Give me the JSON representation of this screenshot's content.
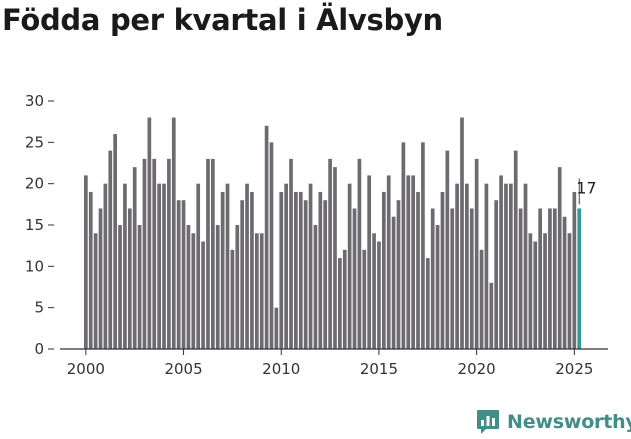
{
  "chart_data": {
    "type": "bar",
    "title": "Födda per kvartal i Älvsbyn",
    "xlabel": "",
    "ylabel": "",
    "ylim": [
      0,
      30
    ],
    "y_ticks": [
      "0",
      "5",
      "10",
      "15",
      "20",
      "25",
      "30"
    ],
    "x_ticks": [
      "2000",
      "2005",
      "2010",
      "2015",
      "2020",
      "2025"
    ],
    "grid": false,
    "x_start_year": 2000,
    "values": [
      21,
      19,
      14,
      17,
      20,
      24,
      26,
      15,
      20,
      17,
      22,
      15,
      23,
      28,
      23,
      20,
      20,
      23,
      28,
      18,
      18,
      15,
      14,
      20,
      13,
      23,
      23,
      15,
      19,
      20,
      12,
      15,
      18,
      20,
      19,
      14,
      14,
      27,
      25,
      5,
      19,
      20,
      23,
      19,
      19,
      18,
      20,
      15,
      19,
      18,
      23,
      22,
      11,
      12,
      20,
      17,
      23,
      12,
      21,
      14,
      13,
      19,
      21,
      16,
      18,
      25,
      21,
      21,
      19,
      25,
      11,
      17,
      15,
      19,
      24,
      17,
      20,
      28,
      20,
      17,
      23,
      12,
      20,
      8,
      18,
      21,
      20,
      20,
      24,
      17,
      20,
      14,
      13,
      17,
      14,
      17,
      17,
      22,
      16,
      14,
      19,
      17
    ],
    "bar_color": "#6d6b70",
    "highlight_color": "#2e9a93",
    "highlight_last": true,
    "annotation": "17"
  },
  "brand": {
    "name": "Newsworthy",
    "color": "#3f8f88"
  }
}
